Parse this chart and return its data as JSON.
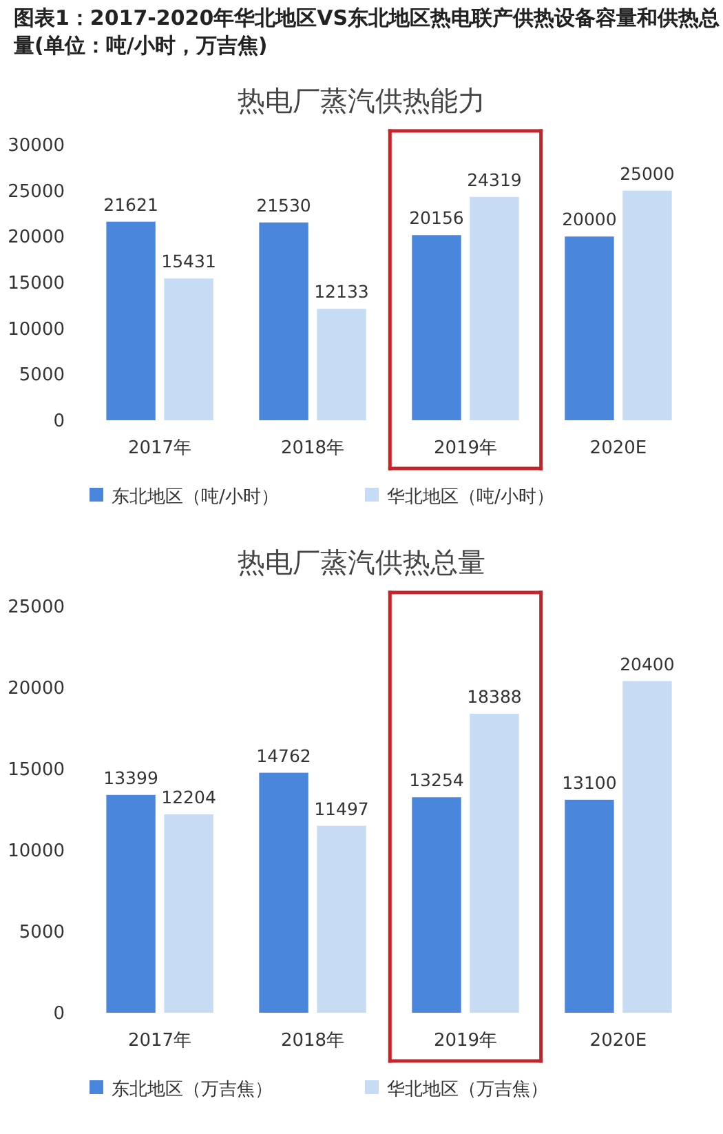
{
  "chart_data": [
    {
      "type": "bar",
      "title": "图表1：2017-2020年华北地区VS东北地区热电联产供热设备容量和供热总量(单位：吨/小时，万吉焦)",
      "subtitle": "热电厂蒸汽供热能力",
      "categories": [
        "2017年",
        "2018年",
        "2019年",
        "2020E"
      ],
      "series": [
        {
          "name": "东北地区（吨/小时）",
          "color": "#4a86dc",
          "values": [
            21621,
            21530,
            20156,
            20000
          ]
        },
        {
          "name": "华北地区（吨/小时）",
          "color": "#c6dcf4",
          "values": [
            15431,
            12133,
            24319,
            25000
          ]
        }
      ],
      "ylim": [
        0,
        30000
      ],
      "yticks": [
        0,
        5000,
        10000,
        15000,
        20000,
        25000,
        30000
      ],
      "data_labels": true,
      "legend": "bottom",
      "grid": false
    },
    {
      "type": "bar",
      "title": "热电厂蒸汽供热总量",
      "categories": [
        "2017年",
        "2018年",
        "2019年",
        "2020E"
      ],
      "series": [
        {
          "name": "东北地区（万吉焦）",
          "color": "#4a86dc",
          "values": [
            13399,
            14762,
            13254,
            13100
          ]
        },
        {
          "name": "华北地区（万吉焦）",
          "color": "#c6dcf4",
          "values": [
            12204,
            11497,
            18388,
            20400
          ]
        }
      ],
      "ylim": [
        0,
        25000
      ],
      "yticks": [
        0,
        5000,
        10000,
        15000,
        20000,
        25000
      ],
      "data_labels": true,
      "legend": "bottom",
      "grid": false
    }
  ]
}
